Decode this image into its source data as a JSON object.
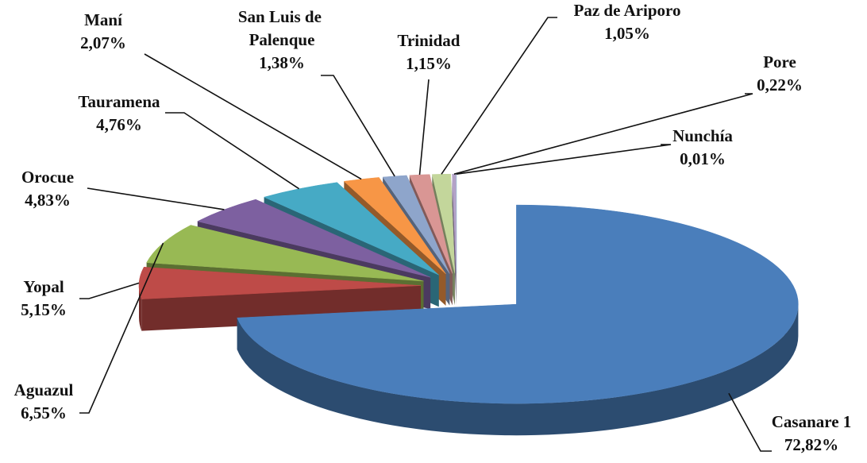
{
  "chart_data": {
    "type": "pie",
    "categories": [
      "Casanare 1",
      "Yopal",
      "Aguazul",
      "Orocue",
      "Tauramena",
      "Maní",
      "San Luis de Palenque",
      "Trinidad",
      "Paz de Ariporo",
      "Pore",
      "Nunchía"
    ],
    "values": [
      72.82,
      5.15,
      6.55,
      4.83,
      4.76,
      2.07,
      1.38,
      1.15,
      1.05,
      0.22,
      0.01
    ],
    "value_labels": [
      "72,82%",
      "5,15%",
      "6,55%",
      "4,83%",
      "4,76%",
      "2,07%",
      "1,38%",
      "1,15%",
      "1,05%",
      "0,22%",
      "0,01%"
    ],
    "colors": [
      "#4a7ebb",
      "#be4b48",
      "#98b954",
      "#7d60a0",
      "#46aac5",
      "#f79646",
      "#8ea5cb",
      "#d99694",
      "#c3d69b",
      "#b3a2c7",
      "#93cddd"
    ]
  }
}
